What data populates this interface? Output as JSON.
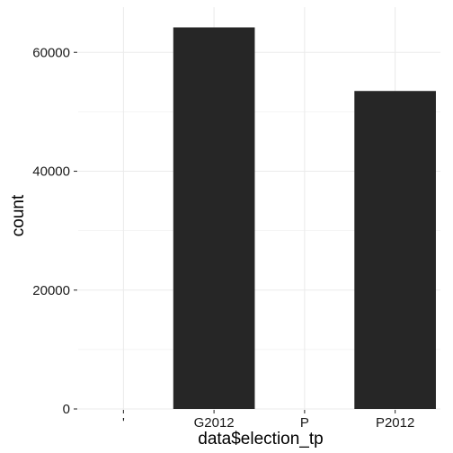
{
  "chart_data": {
    "type": "bar",
    "title": "",
    "xlabel": "data$election_tp",
    "ylabel": "count",
    "categories": [
      "'",
      "G2012",
      "P",
      "P2012"
    ],
    "values": [
      0,
      64200,
      0,
      53500
    ],
    "ylim": [
      0,
      67600
    ],
    "yticks": [
      0,
      20000,
      40000,
      60000
    ],
    "ytick_labels": [
      "0",
      "20000",
      "40000",
      "60000"
    ],
    "grid": true,
    "legend": "none",
    "bar_color": "#262626",
    "grid_color": "#ebebeb",
    "background_color": "#ffffff"
  }
}
